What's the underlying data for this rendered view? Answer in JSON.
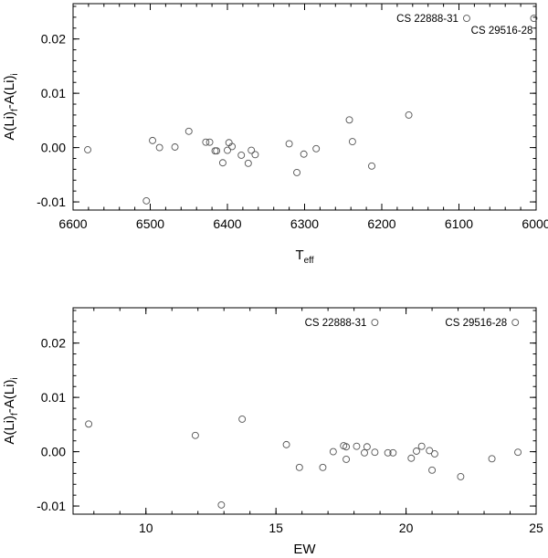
{
  "chart_data": [
    {
      "type": "scatter",
      "xlabel_main": "T",
      "xlabel_sub": "eff",
      "ylabel_parts": [
        "A(Li)",
        "f",
        "-A(Li)",
        "i"
      ],
      "xlim": [
        6600,
        6000
      ],
      "ylim": [
        -0.0115,
        0.0265
      ],
      "xticks": [
        6600,
        6500,
        6400,
        6300,
        6200,
        6100,
        6000
      ],
      "yticks": [
        -0.01,
        0.0,
        0.01,
        0.02
      ],
      "xtick_labels": [
        "6600",
        "6500",
        "6400",
        "6300",
        "6200",
        "6100",
        "6000"
      ],
      "ytick_labels": [
        "-0.01",
        "0.00",
        "0.01",
        "0.02"
      ],
      "marker": "open-circle",
      "points": [
        {
          "x": 6581,
          "y": -0.0004
        },
        {
          "x": 6505,
          "y": -0.0098
        },
        {
          "x": 6497,
          "y": 0.0013
        },
        {
          "x": 6488,
          "y": 0.0
        },
        {
          "x": 6468,
          "y": 0.0001
        },
        {
          "x": 6450,
          "y": 0.003
        },
        {
          "x": 6428,
          "y": 0.001
        },
        {
          "x": 6423,
          "y": 0.001
        },
        {
          "x": 6416,
          "y": -0.0006
        },
        {
          "x": 6414,
          "y": -0.0006
        },
        {
          "x": 6406,
          "y": -0.0028
        },
        {
          "x": 6400,
          "y": -0.0005
        },
        {
          "x": 6398,
          "y": 0.0009
        },
        {
          "x": 6394,
          "y": 0.0002
        },
        {
          "x": 6382,
          "y": -0.0014
        },
        {
          "x": 6373,
          "y": -0.0029
        },
        {
          "x": 6369,
          "y": -0.0005
        },
        {
          "x": 6364,
          "y": -0.0013
        },
        {
          "x": 6320,
          "y": 0.0007
        },
        {
          "x": 6310,
          "y": -0.0046
        },
        {
          "x": 6301,
          "y": -0.0012
        },
        {
          "x": 6285,
          "y": -0.0002
        },
        {
          "x": 6242,
          "y": 0.0051
        },
        {
          "x": 6238,
          "y": 0.0011
        },
        {
          "x": 6213,
          "y": -0.0034
        },
        {
          "x": 6165,
          "y": 0.006
        },
        {
          "x": 6090,
          "y": 0.0238
        },
        {
          "x": 6003,
          "y": 0.0238
        }
      ],
      "annotations": [
        {
          "text": "CS 22888-31",
          "x": 6090,
          "y": 0.0238
        },
        {
          "text": "CS 29516-28",
          "x": 6003,
          "y": 0.0238
        }
      ]
    },
    {
      "type": "scatter",
      "xlabel": "EW",
      "ylabel_parts": [
        "A(Li)",
        "f",
        "-A(Li)",
        "i"
      ],
      "xlim": [
        7.2,
        25
      ],
      "ylim": [
        -0.0115,
        0.0265
      ],
      "xticks": [
        10,
        15,
        20,
        25
      ],
      "yticks": [
        -0.01,
        0.0,
        0.01,
        0.02
      ],
      "xtick_labels": [
        "10",
        "15",
        "20",
        "25"
      ],
      "ytick_labels": [
        "-0.01",
        "0.00",
        "0.01",
        "0.02"
      ],
      "marker": "open-circle",
      "points": [
        {
          "x": 7.8,
          "y": 0.0051
        },
        {
          "x": 11.9,
          "y": 0.003
        },
        {
          "x": 12.9,
          "y": -0.0098
        },
        {
          "x": 13.7,
          "y": 0.006
        },
        {
          "x": 15.4,
          "y": 0.0013
        },
        {
          "x": 15.9,
          "y": -0.0029
        },
        {
          "x": 16.8,
          "y": -0.0029
        },
        {
          "x": 17.2,
          "y": 0.0
        },
        {
          "x": 17.6,
          "y": 0.0011
        },
        {
          "x": 17.7,
          "y": -0.0014
        },
        {
          "x": 17.7,
          "y": 0.0009
        },
        {
          "x": 18.1,
          "y": 0.001
        },
        {
          "x": 18.4,
          "y": -0.0002
        },
        {
          "x": 18.5,
          "y": 0.0009
        },
        {
          "x": 18.8,
          "y": 0.0238
        },
        {
          "x": 18.8,
          "y": -0.0001
        },
        {
          "x": 19.3,
          "y": -0.0002
        },
        {
          "x": 19.5,
          "y": -0.0002
        },
        {
          "x": 20.2,
          "y": -0.0012
        },
        {
          "x": 20.4,
          "y": 0.0001
        },
        {
          "x": 20.6,
          "y": 0.001
        },
        {
          "x": 20.9,
          "y": 0.0002
        },
        {
          "x": 21.0,
          "y": -0.0034
        },
        {
          "x": 21.1,
          "y": -0.0004
        },
        {
          "x": 22.1,
          "y": -0.0046
        },
        {
          "x": 23.3,
          "y": -0.0013
        },
        {
          "x": 24.2,
          "y": 0.0238
        },
        {
          "x": 24.3,
          "y": -0.0001
        }
      ],
      "annotations": [
        {
          "text": "CS 22888-31",
          "x": 18.8,
          "y": 0.0238
        },
        {
          "text": "CS 29516-28",
          "x": 24.2,
          "y": 0.0238
        }
      ]
    }
  ]
}
